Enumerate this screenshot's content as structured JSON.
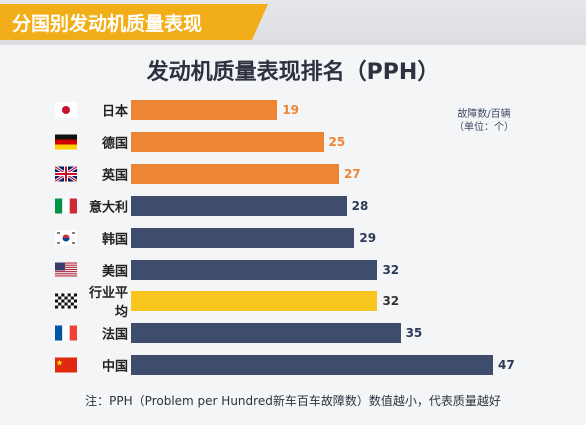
{
  "header": {
    "banner_title": "分国别发动机质量表现"
  },
  "chart_data": {
    "type": "bar",
    "orientation": "horizontal",
    "title": "发动机质量表现排名（PPH）",
    "unit_label_line1": "故障数/百辆",
    "unit_label_line2": "（单位：个）",
    "categories": [
      "日本",
      "德国",
      "英国",
      "意大利",
      "韩国",
      "美国",
      "行业平均",
      "法国",
      "中国"
    ],
    "values": [
      19,
      25,
      27,
      28,
      29,
      32,
      32,
      35,
      47
    ],
    "value_labels": [
      "19",
      "25",
      "27",
      "28",
      "29",
      "32",
      "32",
      "35",
      "47"
    ],
    "bar_colors": [
      "#ee8534",
      "#ee8534",
      "#ee8534",
      "#3f4d6d",
      "#3f4d6d",
      "#3f4d6d",
      "#f7c51d",
      "#3f4d6d",
      "#3f4d6d"
    ],
    "value_label_colors": [
      "#ee8534",
      "#ee8534",
      "#ee8534",
      "#2e3a56",
      "#2e3a56",
      "#2e3a56",
      "#333333",
      "#2e3a56",
      "#2e3a56"
    ],
    "flag_icons": [
      "japan-flag-icon",
      "germany-flag-icon",
      "uk-flag-icon",
      "italy-flag-icon",
      "korea-flag-icon",
      "usa-flag-icon",
      "checkered-flag-icon",
      "france-flag-icon",
      "china-flag-icon"
    ],
    "xlim": [
      0,
      47
    ]
  },
  "footnote": "注：PPH（Problem per Hundred新车百车故障数）数值越小，代表质量越好"
}
